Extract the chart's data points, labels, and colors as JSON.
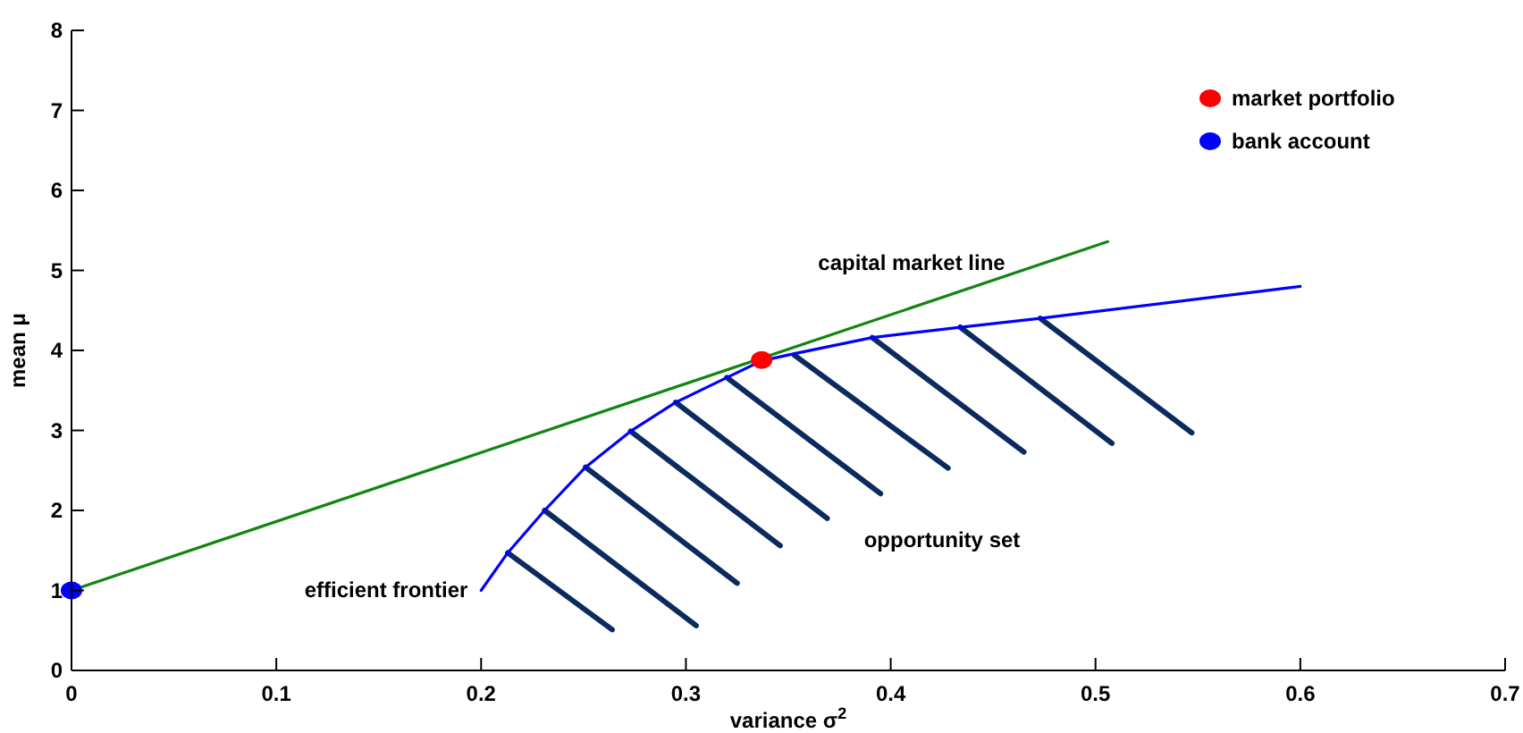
{
  "chart_data": {
    "type": "line",
    "xlabel": "variance σ$^{2}$",
    "ylabel": "mean μ",
    "xlim": [
      0,
      0.7
    ],
    "ylim": [
      0,
      8
    ],
    "xticks": [
      0,
      0.1,
      0.2,
      0.3,
      0.4,
      0.5,
      0.6,
      0.7
    ],
    "yticks": [
      0,
      1,
      2,
      3,
      4,
      5,
      6,
      7,
      8
    ],
    "grid": false,
    "legend": "top right",
    "series": [
      {
        "color": "#0b2a5e",
        "x": [
          0.213,
          0.264
        ],
        "values": [
          1.47,
          0.51
        ]
      },
      {
        "color": "#0b2a5e",
        "x": [
          0.231,
          0.305
        ],
        "values": [
          2.0,
          0.56
        ]
      },
      {
        "color": "#0b2a5e",
        "x": [
          0.251,
          0.325
        ],
        "values": [
          2.54,
          1.09
        ]
      },
      {
        "color": "#0b2a5e",
        "x": [
          0.273,
          0.346
        ],
        "values": [
          2.99,
          1.56
        ]
      },
      {
        "color": "#0b2a5e",
        "x": [
          0.295,
          0.369
        ],
        "values": [
          3.35,
          1.9
        ]
      },
      {
        "color": "#0b2a5e",
        "x": [
          0.32,
          0.395
        ],
        "values": [
          3.66,
          2.21
        ]
      },
      {
        "color": "#0b2a5e",
        "x": [
          0.353,
          0.428
        ],
        "values": [
          3.94,
          2.53
        ]
      },
      {
        "color": "#0b2a5e",
        "x": [
          0.391,
          0.465
        ],
        "values": [
          4.16,
          2.73
        ]
      },
      {
        "color": "#0b2a5e",
        "x": [
          0.434,
          0.508
        ],
        "values": [
          4.29,
          2.84
        ]
      },
      {
        "color": "#0b2a5e",
        "x": [
          0.473,
          0.547
        ],
        "values": [
          4.4,
          2.97
        ]
      },
      {
        "color": "#138513",
        "x": [
          0,
          0.506
        ],
        "values": [
          1,
          5.36
        ]
      },
      {
        "color": "#0000ff",
        "x": [
          0.2,
          0.213,
          0.231,
          0.251,
          0.273,
          0.295,
          0.32,
          0.337,
          0.353,
          0.391,
          0.434,
          0.473,
          0.6
        ],
        "values": [
          1.0,
          1.47,
          2.0,
          2.54,
          2.99,
          3.35,
          3.66,
          3.87,
          3.96,
          4.16,
          4.29,
          4.4,
          4.8
        ]
      },
      {
        "type": "scatter",
        "name": "market portfolio",
        "color": "#ff0000",
        "x": [
          0.337
        ],
        "values": [
          3.88
        ]
      },
      {
        "type": "scatter",
        "name": "bank account",
        "color": "#0000ff",
        "x": [
          0
        ],
        "values": [
          1
        ]
      }
    ],
    "annotations": [
      "capital market line",
      "efficient frontier",
      "opportunity set"
    ]
  }
}
